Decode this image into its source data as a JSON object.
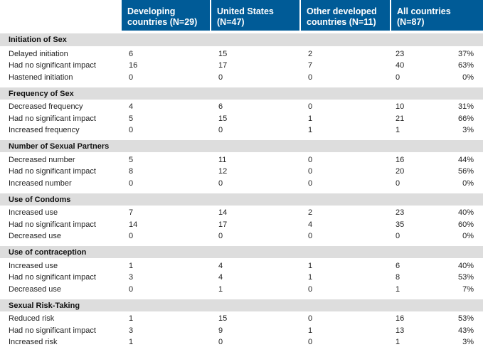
{
  "header": {
    "blank": "",
    "columns": [
      [
        "Developing",
        "countries (N=29)"
      ],
      [
        "United States",
        "(N=47)"
      ],
      [
        "Other developed",
        "countries (N=11)"
      ],
      [
        "All countries",
        "(N=87)"
      ]
    ]
  },
  "sections": [
    {
      "title": "Initiation of Sex",
      "rows": [
        {
          "label": "Delayed initiation",
          "dev": "6",
          "us": "15",
          "other": "2",
          "all": "23",
          "pct": "37%"
        },
        {
          "label": "Had no significant impact",
          "dev": "16",
          "us": "17",
          "other": "7",
          "all": "40",
          "pct": "63%"
        },
        {
          "label": "Hastened initiation",
          "dev": "0",
          "us": "0",
          "other": "0",
          "all": "0",
          "pct": "0%"
        }
      ]
    },
    {
      "title": "Frequency of Sex",
      "rows": [
        {
          "label": "Decreased frequency",
          "dev": "4",
          "us": "6",
          "other": "0",
          "all": "10",
          "pct": "31%"
        },
        {
          "label": "Had no significant impact",
          "dev": "5",
          "us": "15",
          "other": "1",
          "all": "21",
          "pct": "66%"
        },
        {
          "label": "Increased frequency",
          "dev": "0",
          "us": "0",
          "other": "1",
          "all": "1",
          "pct": "3%"
        }
      ]
    },
    {
      "title": "Number of Sexual Partners",
      "rows": [
        {
          "label": "Decreased number",
          "dev": "5",
          "us": "11",
          "other": "0",
          "all": "16",
          "pct": "44%"
        },
        {
          "label": "Had no significant impact",
          "dev": "8",
          "us": "12",
          "other": "0",
          "all": "20",
          "pct": "56%"
        },
        {
          "label": "Increased number",
          "dev": "0",
          "us": "0",
          "other": "0",
          "all": "0",
          "pct": "0%"
        }
      ]
    },
    {
      "title": "Use of Condoms",
      "rows": [
        {
          "label": "Increased use",
          "dev": "7",
          "us": "14",
          "other": "2",
          "all": "23",
          "pct": "40%"
        },
        {
          "label": "Had no significant impact",
          "dev": "14",
          "us": "17",
          "other": "4",
          "all": "35",
          "pct": "60%"
        },
        {
          "label": "Decreased use",
          "dev": "0",
          "us": "0",
          "other": "0",
          "all": "0",
          "pct": "0%"
        }
      ]
    },
    {
      "title": "Use of contraception",
      "rows": [
        {
          "label": "Increased use",
          "dev": "1",
          "us": "4",
          "other": "1",
          "all": "6",
          "pct": "40%"
        },
        {
          "label": "Had no significant impact",
          "dev": "3",
          "us": "4",
          "other": "1",
          "all": "8",
          "pct": "53%"
        },
        {
          "label": "Decreased use",
          "dev": "0",
          "us": "1",
          "other": "0",
          "all": "1",
          "pct": "7%"
        }
      ]
    },
    {
      "title": "Sexual Risk-Taking",
      "rows": [
        {
          "label": "Reduced risk",
          "dev": "1",
          "us": "15",
          "other": "0",
          "all": "16",
          "pct": "53%"
        },
        {
          "label": "Had no significant impact",
          "dev": "3",
          "us": "9",
          "other": "1",
          "all": "13",
          "pct": "43%"
        },
        {
          "label": "Increased risk",
          "dev": "1",
          "us": "0",
          "other": "0",
          "all": "1",
          "pct": "3%"
        }
      ]
    }
  ]
}
